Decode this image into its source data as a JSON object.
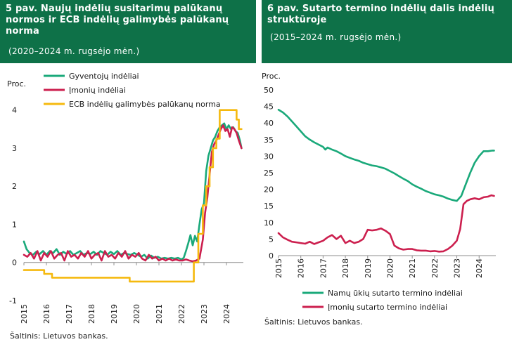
{
  "left_panel": {
    "title": "5 pav. Naujų indėlių susitarimų palūkanų normos ir ECB indėlių galimybės palūkanų norma",
    "subtitle": "(2020–2024 m. rugsėjo mėn.)",
    "source": "Šaltinis: Lietuvos bankas."
  },
  "right_panel": {
    "title": "6 pav. Sutarto termino indėlių dalis indėlių struktūroje",
    "subtitle": "(2015–2024 m. rugsėjo mėn.)",
    "source": "Šaltinis: Lietuvos bankas."
  },
  "colors": {
    "green": "#1aa97a",
    "red": "#cc1f4e",
    "yellow": "#f5b90e",
    "header": "#0e7148",
    "axis": "#8c8c8c"
  },
  "chart_data": [
    {
      "type": "line",
      "title": "5 pav. Naujų indėlių susitarimų palūkanų normos ir ECB indėlių galimybės palūkanų norma",
      "ylabel": "Proc.",
      "ylim": [
        -1,
        4.4
      ],
      "yticks": [
        -1,
        0,
        1,
        2,
        3,
        4
      ],
      "xlim": [
        2015,
        2024.75
      ],
      "xticks": [
        2015,
        2016,
        2017,
        2018,
        2019,
        2020,
        2021,
        2022,
        2023,
        2024
      ],
      "xtick_labels": [
        "2015",
        "2016",
        "2017",
        "2018",
        "2019",
        "2020",
        "2021",
        "2022",
        "2023",
        "2024"
      ],
      "legend_position": "top-left",
      "series": [
        {
          "name": "Gyventojų indėliai",
          "color": "#1aa97a",
          "x": [
            2015.0,
            2015.12,
            2015.25,
            2015.4,
            2015.55,
            2015.7,
            2015.85,
            2016.0,
            2016.15,
            2016.3,
            2016.45,
            2016.6,
            2016.75,
            2016.9,
            2017.05,
            2017.2,
            2017.35,
            2017.5,
            2017.65,
            2017.8,
            2017.95,
            2018.1,
            2018.25,
            2018.4,
            2018.55,
            2018.7,
            2018.85,
            2019.0,
            2019.15,
            2019.3,
            2019.45,
            2019.6,
            2019.75,
            2019.9,
            2020.05,
            2020.2,
            2020.35,
            2020.5,
            2020.65,
            2020.8,
            2020.95,
            2021.1,
            2021.25,
            2021.4,
            2021.55,
            2021.7,
            2021.85,
            2022.0,
            2022.1,
            2022.2,
            2022.3,
            2022.4,
            2022.5,
            2022.6,
            2022.7,
            2022.8,
            2022.9,
            2023.0,
            2023.1,
            2023.2,
            2023.3,
            2023.4,
            2023.5,
            2023.6,
            2023.7,
            2023.8,
            2023.9,
            2024.0,
            2024.1,
            2024.2,
            2024.3,
            2024.4,
            2024.5,
            2024.6,
            2024.67
          ],
          "values": [
            0.55,
            0.35,
            0.25,
            0.2,
            0.28,
            0.22,
            0.3,
            0.2,
            0.3,
            0.25,
            0.35,
            0.2,
            0.28,
            0.22,
            0.3,
            0.2,
            0.25,
            0.3,
            0.2,
            0.25,
            0.22,
            0.28,
            0.2,
            0.3,
            0.25,
            0.2,
            0.28,
            0.22,
            0.3,
            0.2,
            0.25,
            0.22,
            0.2,
            0.25,
            0.2,
            0.15,
            0.2,
            0.1,
            0.18,
            0.12,
            0.15,
            0.1,
            0.12,
            0.1,
            0.12,
            0.1,
            0.12,
            0.08,
            0.12,
            0.3,
            0.5,
            0.72,
            0.45,
            0.7,
            0.55,
            1.0,
            1.4,
            1.55,
            2.4,
            2.8,
            3.0,
            3.2,
            3.3,
            3.45,
            3.55,
            3.6,
            3.65,
            3.5,
            3.6,
            3.5,
            3.55,
            3.45,
            3.4,
            3.2,
            3.0
          ]
        },
        {
          "name": "Įmonių indėliai",
          "color": "#cc1f4e",
          "x": [
            2015.0,
            2015.15,
            2015.3,
            2015.45,
            2015.6,
            2015.75,
            2015.9,
            2016.05,
            2016.2,
            2016.35,
            2016.5,
            2016.65,
            2016.8,
            2016.95,
            2017.1,
            2017.25,
            2017.4,
            2017.55,
            2017.7,
            2017.85,
            2018.0,
            2018.15,
            2018.3,
            2018.45,
            2018.6,
            2018.75,
            2018.9,
            2019.05,
            2019.2,
            2019.35,
            2019.5,
            2019.65,
            2019.8,
            2019.95,
            2020.1,
            2020.25,
            2020.4,
            2020.55,
            2020.7,
            2020.85,
            2021.0,
            2021.15,
            2021.3,
            2021.45,
            2021.6,
            2021.75,
            2021.9,
            2022.05,
            2022.2,
            2022.35,
            2022.5,
            2022.65,
            2022.8,
            2022.95,
            2023.05,
            2023.15,
            2023.25,
            2023.35,
            2023.45,
            2023.55,
            2023.65,
            2023.75,
            2023.85,
            2023.95,
            2024.05,
            2024.15,
            2024.25,
            2024.35,
            2024.45,
            2024.55,
            2024.67
          ],
          "values": [
            0.2,
            0.15,
            0.25,
            0.1,
            0.3,
            0.05,
            0.25,
            0.15,
            0.3,
            0.1,
            0.2,
            0.25,
            0.05,
            0.3,
            0.15,
            0.2,
            0.1,
            0.25,
            0.15,
            0.3,
            0.1,
            0.2,
            0.25,
            0.05,
            0.3,
            0.15,
            0.2,
            0.1,
            0.25,
            0.15,
            0.3,
            0.1,
            0.2,
            0.15,
            0.25,
            0.1,
            0.05,
            0.2,
            0.1,
            0.15,
            0.05,
            0.1,
            0.05,
            0.1,
            0.05,
            0.08,
            0.05,
            0.05,
            0.08,
            0.05,
            0.03,
            0.05,
            0.1,
            0.6,
            1.3,
            1.7,
            2.3,
            2.9,
            3.1,
            3.2,
            3.35,
            3.5,
            3.6,
            3.45,
            3.5,
            3.3,
            3.55,
            3.5,
            3.4,
            3.2,
            3.0
          ]
        },
        {
          "name": "ECB indėlių galimybės palūkanų norma",
          "color": "#f5b90e",
          "x": [
            2015.0,
            2015.25,
            2015.9,
            2015.9,
            2016.25,
            2016.25,
            2019.7,
            2019.7,
            2022.55,
            2022.55,
            2022.75,
            2022.75,
            2022.95,
            2022.95,
            2023.1,
            2023.1,
            2023.25,
            2023.25,
            2023.4,
            2023.4,
            2023.55,
            2023.55,
            2023.7,
            2023.7,
            2024.45,
            2024.45,
            2024.55,
            2024.55,
            2024.67
          ],
          "values": [
            -0.2,
            -0.2,
            -0.2,
            -0.3,
            -0.3,
            -0.4,
            -0.4,
            -0.5,
            -0.5,
            0.0,
            0.0,
            0.75,
            0.75,
            1.5,
            1.5,
            2.0,
            2.0,
            2.5,
            2.5,
            3.0,
            3.0,
            3.25,
            3.25,
            4.0,
            4.0,
            3.75,
            3.75,
            3.5,
            3.5
          ]
        }
      ]
    },
    {
      "type": "line",
      "title": "6 pav. Sutarto termino indėlių dalis indėlių struktūroje",
      "ylabel": "Proc.",
      "ylim": [
        0,
        50
      ],
      "yticks": [
        0,
        5,
        10,
        15,
        20,
        25,
        30,
        35,
        40,
        45,
        50
      ],
      "xlim": [
        2015,
        2024.75
      ],
      "xticks": [
        2015,
        2016,
        2017,
        2018,
        2019,
        2020,
        2021,
        2022,
        2023,
        2024
      ],
      "xtick_labels": [
        "2015",
        "2016",
        "2017",
        "2018",
        "2019",
        "2020",
        "2021",
        "2022",
        "2023",
        "2024"
      ],
      "legend_position": "bottom",
      "series": [
        {
          "name": "Namų ūkių sutarto termino indėliai",
          "color": "#1aa97a",
          "x": [
            2015.0,
            2015.2,
            2015.4,
            2015.6,
            2015.8,
            2016.0,
            2016.2,
            2016.4,
            2016.6,
            2016.8,
            2017.0,
            2017.1,
            2017.2,
            2017.4,
            2017.6,
            2017.8,
            2018.0,
            2018.2,
            2018.4,
            2018.6,
            2018.8,
            2019.0,
            2019.2,
            2019.4,
            2019.6,
            2019.8,
            2020.0,
            2020.2,
            2020.4,
            2020.6,
            2020.8,
            2021.0,
            2021.2,
            2021.4,
            2021.6,
            2021.8,
            2022.0,
            2022.2,
            2022.4,
            2022.6,
            2022.8,
            2023.0,
            2023.2,
            2023.4,
            2023.6,
            2023.8,
            2024.0,
            2024.2,
            2024.4,
            2024.6,
            2024.67
          ],
          "values": [
            44.0,
            43.2,
            42.0,
            40.5,
            39.0,
            37.5,
            36.0,
            35.0,
            34.2,
            33.5,
            32.8,
            32.0,
            32.6,
            32.0,
            31.5,
            30.8,
            30.0,
            29.5,
            29.0,
            28.6,
            28.0,
            27.6,
            27.2,
            27.0,
            26.6,
            26.2,
            25.5,
            24.8,
            24.0,
            23.2,
            22.5,
            21.5,
            20.8,
            20.2,
            19.5,
            19.0,
            18.5,
            18.2,
            17.8,
            17.2,
            16.8,
            16.5,
            18.0,
            21.5,
            25.0,
            28.0,
            30.0,
            31.5,
            31.5,
            31.7,
            31.7
          ]
        },
        {
          "name": "Įmonių sutarto termino indėliai",
          "color": "#cc1f4e",
          "x": [
            2015.0,
            2015.2,
            2015.4,
            2015.6,
            2015.8,
            2016.0,
            2016.2,
            2016.4,
            2016.6,
            2016.8,
            2017.0,
            2017.2,
            2017.4,
            2017.6,
            2017.8,
            2018.0,
            2018.2,
            2018.4,
            2018.6,
            2018.8,
            2019.0,
            2019.2,
            2019.4,
            2019.6,
            2019.8,
            2020.0,
            2020.2,
            2020.4,
            2020.6,
            2020.8,
            2021.0,
            2021.2,
            2021.4,
            2021.6,
            2021.8,
            2022.0,
            2022.2,
            2022.4,
            2022.6,
            2022.8,
            2023.0,
            2023.15,
            2023.3,
            2023.45,
            2023.6,
            2023.8,
            2024.0,
            2024.2,
            2024.4,
            2024.55,
            2024.67
          ],
          "values": [
            6.8,
            5.5,
            4.8,
            4.2,
            4.0,
            3.8,
            3.6,
            4.2,
            3.5,
            4.0,
            4.5,
            5.5,
            6.2,
            5.0,
            6.0,
            3.8,
            4.5,
            3.8,
            4.2,
            5.0,
            7.8,
            7.6,
            7.8,
            8.2,
            7.5,
            6.5,
            3.0,
            2.2,
            1.8,
            2.0,
            2.0,
            1.6,
            1.5,
            1.5,
            1.3,
            1.4,
            1.2,
            1.3,
            2.0,
            3.0,
            4.5,
            8.0,
            15.5,
            16.5,
            17.0,
            17.3,
            17.0,
            17.6,
            17.8,
            18.2,
            18.0
          ]
        }
      ]
    }
  ]
}
